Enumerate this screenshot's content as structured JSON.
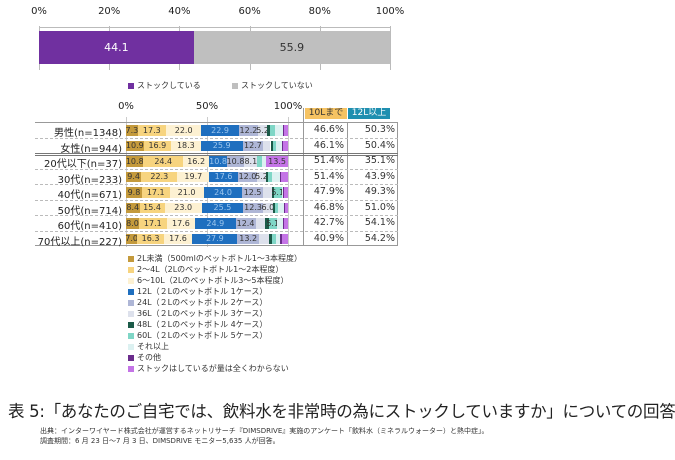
{
  "chart_data": [
    {
      "type": "bar",
      "orientation": "horizontal-stacked-100",
      "xlim": [
        0,
        100
      ],
      "tick_labels": [
        "0%",
        "20%",
        "40%",
        "60%",
        "80%",
        "100%"
      ],
      "series": [
        {
          "name": "ストックしている",
          "values": [
            44.1
          ],
          "label": "44.1",
          "color": "#7030a0"
        },
        {
          "name": "ストックしていない",
          "values": [
            55.9
          ],
          "label": "55.9",
          "color": "#bfbfbf"
        }
      ],
      "legend_position": "bottom"
    },
    {
      "type": "bar",
      "orientation": "horizontal-stacked-100",
      "xlim": [
        0,
        100
      ],
      "tick_labels": [
        "0%",
        "50%",
        "100%"
      ],
      "categories": [
        "男性(n=1348)",
        "女性(n=944)",
        "20代以下(n=37)",
        "30代(n=233)",
        "40代(n=671)",
        "50代(n=714)",
        "60代(n=410)",
        "70代以上(n=227)"
      ],
      "series": [
        {
          "name": "2L未満（500mlのペットボトル1～3本程度）",
          "color": "#c49a3c",
          "values": [
            7.3,
            10.9,
            10.8,
            9.4,
            9.8,
            8.4,
            8.0,
            7.0
          ],
          "labels": [
            "7.3",
            "10.9",
            "10.8",
            "9.4",
            "9.8",
            "8.4",
            "8.0",
            "7.0"
          ]
        },
        {
          "name": "2～4L（2Lのペットボトル1～2本程度）",
          "color": "#f7d47f",
          "values": [
            17.3,
            16.9,
            24.4,
            22.3,
            17.1,
            15.4,
            17.1,
            16.3
          ],
          "labels": [
            "17.3",
            "16.9",
            "24.4",
            "22.3",
            "17.1",
            "15.4",
            "17.1",
            "16.3"
          ]
        },
        {
          "name": "6～10L（2Lのペットボトル3～5本程度）",
          "color": "#fdf1d2",
          "values": [
            22.0,
            18.3,
            16.2,
            19.7,
            21.0,
            23.0,
            17.6,
            17.6
          ],
          "labels": [
            "22.0",
            "18.3",
            "16.2",
            "19.7",
            "21.0",
            "23.0",
            "17.6",
            "17.6"
          ]
        },
        {
          "name": "12L（２Lのペットボトル 1ケース）",
          "color": "#1f6fbf",
          "values": [
            22.9,
            25.9,
            10.8,
            17.6,
            24.0,
            25.5,
            24.9,
            27.9
          ],
          "labels": [
            "22.9",
            "25.9",
            "10.8",
            "17.6",
            "24.0",
            "25.5",
            "24.9",
            "27.9"
          ]
        },
        {
          "name": "24L（２Lのペットボトル 2ケース）",
          "color": "#aeb6d6",
          "values": [
            12.2,
            12.7,
            10.8,
            12.0,
            12.5,
            12.3,
            12.4,
            13.2
          ],
          "labels": [
            "12.2",
            "12.7",
            "10.8",
            "12.0",
            "12.5",
            "12.3",
            "12.4",
            "13.2"
          ]
        },
        {
          "name": "36L（２Lのペットボトル 3ケース）",
          "color": "#dde1ec",
          "values": [
            5.2,
            4.5,
            8.1,
            5.2,
            5.5,
            6.0,
            6.0,
            6.5
          ],
          "labels": [
            "5.2",
            "",
            "8.1",
            "5.2",
            "",
            "6.0",
            "",
            ""
          ]
        },
        {
          "name": "48L（２Lのペットボトル 4ケース）",
          "color": "#1b5a48",
          "values": [
            2.0,
            1.5,
            0,
            1.5,
            1.2,
            1.5,
            2.0,
            1.5
          ],
          "labels": [
            "",
            "",
            "",
            "",
            "",
            "",
            "",
            ""
          ]
        },
        {
          "name": "60L（２Lのペットボトル 5ケース）",
          "color": "#7fd6c6",
          "values": [
            3.0,
            2.0,
            2.7,
            2.5,
            5.1,
            2.0,
            5.1,
            2.5
          ],
          "labels": [
            "",
            "",
            "",
            "",
            "5.1",
            "",
            "5.1",
            ""
          ]
        },
        {
          "name": "それ以上",
          "color": "#dcf1f1",
          "values": [
            5.0,
            3.8,
            2.7,
            5.1,
            1.0,
            3.7,
            3.7,
            2.6
          ],
          "labels": [
            "",
            "",
            "",
            "",
            "",
            "",
            "",
            ""
          ]
        },
        {
          "name": "その他",
          "color": "#6b2c8c",
          "values": [
            0.6,
            0.5,
            0,
            0.5,
            0.5,
            0.5,
            0.5,
            1.5
          ],
          "labels": [
            "",
            "",
            "",
            "",
            "",
            "",
            "",
            ""
          ]
        },
        {
          "name": "ストックはしているが量は全くわからない",
          "color": "#c474e6",
          "values": [
            2.5,
            3.0,
            13.5,
            4.2,
            2.3,
            1.7,
            2.7,
            3.4
          ],
          "labels": [
            "",
            "",
            "13.5",
            "",
            "",
            "",
            "",
            ""
          ]
        }
      ],
      "table": {
        "headers": [
          "10Lまで",
          "12L以上"
        ],
        "header_colors": [
          "#f6c363",
          "#1f8fb0"
        ],
        "rows": [
          [
            "46.6%",
            "50.3%"
          ],
          [
            "46.1%",
            "50.4%"
          ],
          [
            "51.4%",
            "35.1%"
          ],
          [
            "51.4%",
            "43.9%"
          ],
          [
            "47.9%",
            "49.3%"
          ],
          [
            "46.8%",
            "51.0%"
          ],
          [
            "42.7%",
            "54.1%"
          ],
          [
            "40.9%",
            "54.2%"
          ]
        ]
      },
      "legend_position": "bottom"
    }
  ],
  "caption": {
    "title": "表 5:「あなたのご自宅では、飲料水を非常時の為にストックしていますか」についての回答",
    "source": "出典：インターワイヤード株式会社が運営するネットリサーチ『DIMSDRIVE』実施のアンケート「飲料水（ミネラルウォーター）と熱中症」。",
    "period": "調査期間：6 月 23 日～7 月 3 日、DIMSDRIVE モニター5,635 人が回答。"
  }
}
